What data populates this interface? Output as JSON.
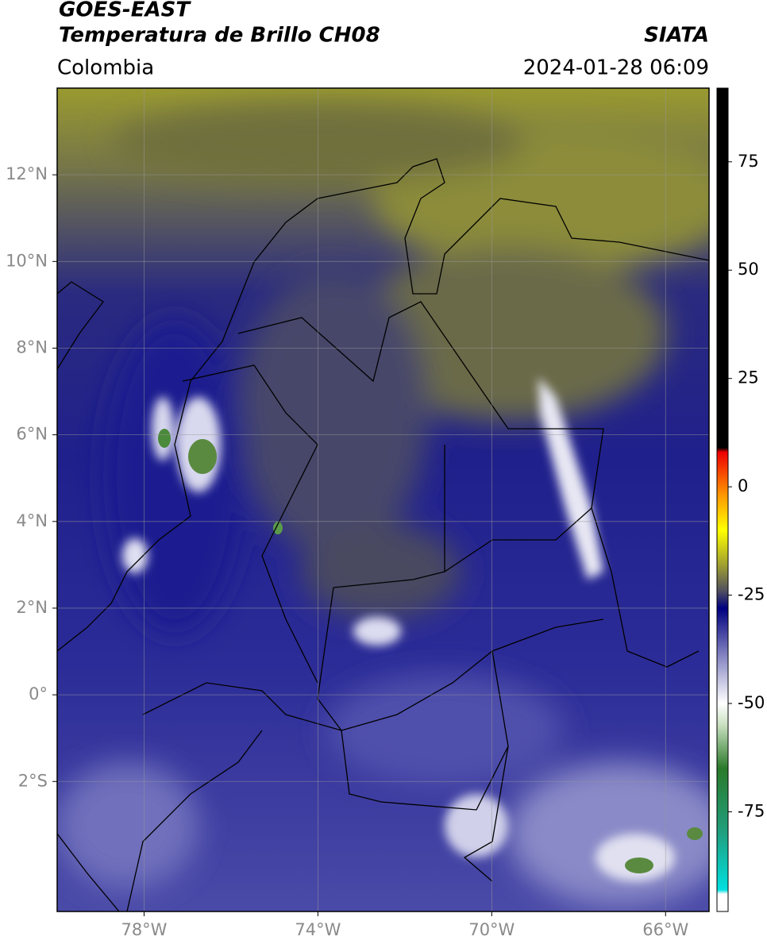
{
  "chart_data": {
    "type": "satellite-map",
    "title": "GOES-EAST",
    "subtitle": "Temperatura de Brillo CH08",
    "source": "SIATA",
    "region": "Colombia",
    "datetime": "2024-01-28 06:09",
    "xlim": [
      -80,
      -65
    ],
    "ylim": [
      -5,
      14
    ],
    "xticks": [
      {
        "value": -78,
        "label": "78°W"
      },
      {
        "value": -74,
        "label": "74°W"
      },
      {
        "value": -70,
        "label": "70°W"
      },
      {
        "value": -66,
        "label": "66°W"
      }
    ],
    "yticks": [
      {
        "value": 12,
        "label": "12°N"
      },
      {
        "value": 10,
        "label": "10°N"
      },
      {
        "value": 8,
        "label": "8°N"
      },
      {
        "value": 6,
        "label": "6°N"
      },
      {
        "value": 4,
        "label": "4°N"
      },
      {
        "value": 2,
        "label": "2°N"
      },
      {
        "value": 0,
        "label": "0°"
      },
      {
        "value": -2,
        "label": "2°S"
      }
    ],
    "grid": true,
    "colorbar": {
      "lim": [
        -98,
        92
      ],
      "ticks": [
        75,
        50,
        25,
        0,
        -25,
        -50,
        -75
      ],
      "colormap": [
        {
          "value": -98,
          "color": "#ffffff"
        },
        {
          "value": -94,
          "color": "#ffffff"
        },
        {
          "value": -93,
          "color": "#00e0e0"
        },
        {
          "value": -80,
          "color": "#20a080"
        },
        {
          "value": -65,
          "color": "#2a7a2a"
        },
        {
          "value": -55,
          "color": "#c8e0c0"
        },
        {
          "value": -50,
          "color": "#ffffff"
        },
        {
          "value": -40,
          "color": "#9090c8"
        },
        {
          "value": -28,
          "color": "#000080"
        },
        {
          "value": -24,
          "color": "#505060"
        },
        {
          "value": -18,
          "color": "#a0a030"
        },
        {
          "value": -10,
          "color": "#ffff00"
        },
        {
          "value": -2,
          "color": "#ff9900"
        },
        {
          "value": 8,
          "color": "#ee0000"
        },
        {
          "value": 9,
          "color": "#000000"
        },
        {
          "value": 92,
          "color": "#000000"
        }
      ]
    }
  }
}
